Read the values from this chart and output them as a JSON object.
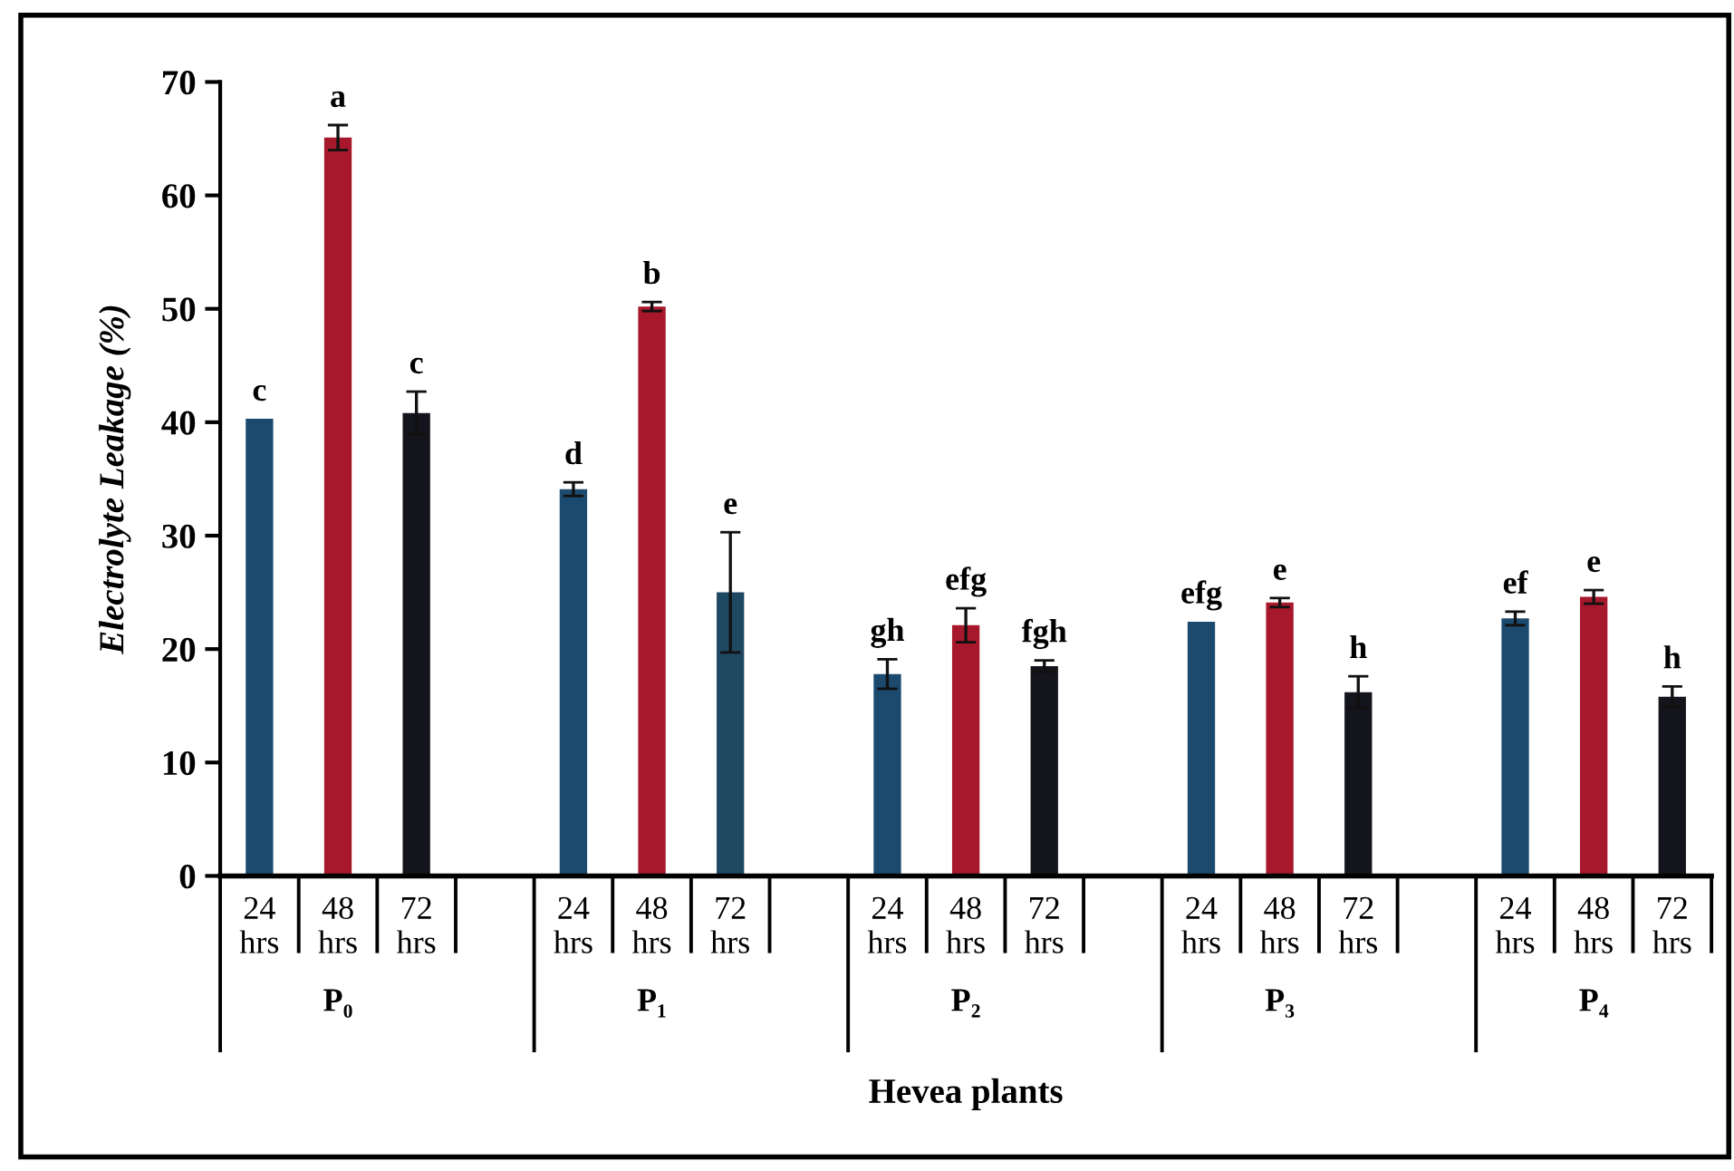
{
  "chart_data": {
    "type": "bar",
    "ylabel": "Electrolyte Leakage (%)",
    "xlabel": "Hevea plants",
    "categories": [
      "24\nhrs",
      "48\nhrs",
      "72\nhrs",
      null,
      "24\nhrs",
      "48\nhrs",
      "72\nhrs",
      null,
      "24\nhrs",
      "48\nhrs",
      "72\nhrs",
      null,
      "24\nhrs",
      "48\nhrs",
      "72\nhrs",
      null,
      "24\nhrs",
      "48\nhrs",
      "72\nhrs"
    ],
    "annotations": [
      "P₀",
      "P₁",
      "P₂",
      "P₃",
      "P₄"
    ],
    "values": [
      40.3,
      65.1,
      40.8,
      null,
      34.1,
      50.2,
      25.0,
      null,
      17.8,
      22.1,
      18.5,
      null,
      22.4,
      24.1,
      16.2,
      null,
      22.7,
      24.6,
      15.8
    ],
    "errors": [
      null,
      1.1,
      1.9,
      null,
      0.6,
      0.4,
      5.3,
      null,
      1.3,
      1.5,
      0.5,
      null,
      null,
      0.4,
      1.4,
      null,
      0.6,
      0.6,
      0.9
    ],
    "colors": [
      "#1c4a6e",
      "#a8182c",
      "#14141c",
      null,
      "#1c4a6e",
      "#a8182c",
      "#1f4862",
      null,
      "#1c4a6e",
      "#a8182c",
      "#14141c",
      null,
      "#1c4a6e",
      "#a8182c",
      "#14141c",
      null,
      "#1c4a6e",
      "#a8182c",
      "#14141c"
    ],
    "value_labels": [
      "c",
      "a",
      "c",
      null,
      "d",
      "b",
      "e",
      null,
      "gh",
      "efg",
      "fgh",
      null,
      "efg",
      "e",
      "h",
      null,
      "ef",
      "e",
      "h"
    ],
    "ylim": [
      0,
      70
    ],
    "yticks": [
      0,
      10,
      20,
      30,
      40,
      50,
      60,
      70
    ],
    "grid": false,
    "legend": false
  }
}
